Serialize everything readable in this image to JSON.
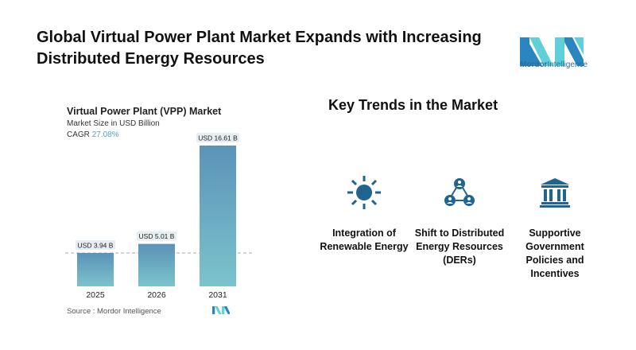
{
  "header": {
    "title": "Global Virtual Power Plant Market Expands with Increasing Distributed Energy Resources"
  },
  "logo": {
    "text_bold": "Mordor",
    "text_light": "Intelligence",
    "colors": [
      "#2a86c0",
      "#5fd0d8"
    ]
  },
  "chart_data": {
    "type": "bar",
    "title": "Virtual Power Plant (VPP) Market",
    "subtitle": "Market Size in USD Billion",
    "cagr_label": "CAGR",
    "cagr_value": "27.08%",
    "categories": [
      "2025",
      "2026",
      "2031"
    ],
    "values": [
      3.94,
      5.01,
      16.61
    ],
    "data_labels": [
      "USD 3.94 B",
      "USD 5.01 B",
      "USD 16.61 B"
    ],
    "ylim": [
      0,
      16.61
    ],
    "grid": false,
    "reference_line": "dashed at 2025 value",
    "bar_color_top": "#5b93b8",
    "bar_color_bottom": "#7cc3cc",
    "source": "Source :  Mordor Intelligence"
  },
  "trends": {
    "title": "Key Trends in the Market",
    "icon_color": "#1f6590",
    "items": [
      {
        "icon": "sun-icon",
        "label": "Integration of Renewable Energy"
      },
      {
        "icon": "network-people-icon",
        "label": "Shift to Distributed Energy Resources (DERs)"
      },
      {
        "icon": "government-building-icon",
        "label": "Supportive Government Policies and Incentives"
      }
    ]
  }
}
